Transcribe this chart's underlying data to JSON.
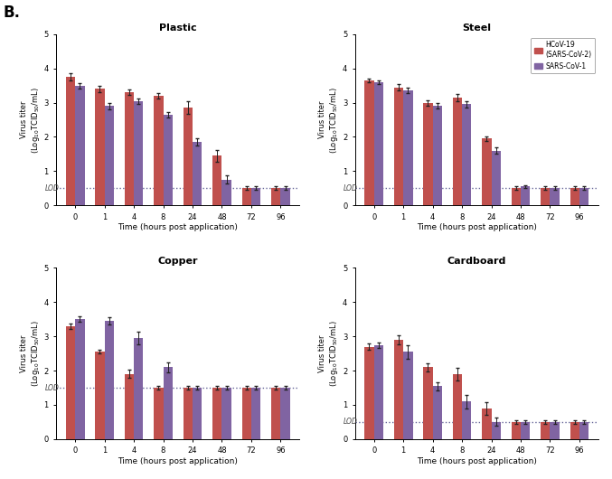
{
  "panels": [
    {
      "title": "Plastic",
      "timepoints": [
        0,
        1,
        4,
        8,
        24,
        48,
        72,
        96
      ],
      "sars2_means": [
        3.75,
        3.4,
        3.3,
        3.2,
        2.85,
        1.45,
        0.5,
        0.5
      ],
      "sars1_means": [
        3.5,
        2.9,
        3.05,
        2.65,
        1.85,
        0.75,
        0.5,
        0.5
      ],
      "sars2_err": [
        0.1,
        0.1,
        0.08,
        0.08,
        0.18,
        0.18,
        0.05,
        0.05
      ],
      "sars1_err": [
        0.08,
        0.1,
        0.08,
        0.08,
        0.1,
        0.12,
        0.05,
        0.05
      ]
    },
    {
      "title": "Steel",
      "timepoints": [
        0,
        1,
        4,
        8,
        24,
        48,
        72,
        96
      ],
      "sars2_means": [
        3.65,
        3.45,
        3.0,
        3.15,
        1.95,
        0.5,
        0.5,
        0.5
      ],
      "sars1_means": [
        3.6,
        3.35,
        2.9,
        2.95,
        1.6,
        0.55,
        0.5,
        0.5
      ],
      "sars2_err": [
        0.05,
        0.1,
        0.08,
        0.1,
        0.07,
        0.05,
        0.05,
        0.05
      ],
      "sars1_err": [
        0.05,
        0.08,
        0.08,
        0.08,
        0.1,
        0.05,
        0.05,
        0.05
      ]
    },
    {
      "title": "Copper",
      "timepoints": [
        0,
        1,
        4,
        8,
        24,
        48,
        72,
        96
      ],
      "sars2_means": [
        3.3,
        2.55,
        1.9,
        1.5,
        1.5,
        1.5,
        1.5,
        1.5
      ],
      "sars1_means": [
        3.5,
        3.45,
        2.95,
        2.1,
        1.5,
        1.5,
        1.5,
        1.5
      ],
      "sars2_err": [
        0.08,
        0.05,
        0.12,
        0.05,
        0.05,
        0.05,
        0.05,
        0.05
      ],
      "sars1_err": [
        0.08,
        0.1,
        0.18,
        0.15,
        0.05,
        0.05,
        0.05,
        0.05
      ]
    },
    {
      "title": "Cardboard",
      "timepoints": [
        0,
        1,
        4,
        8,
        24,
        48,
        72,
        96
      ],
      "sars2_means": [
        2.7,
        2.9,
        2.1,
        1.9,
        0.9,
        0.5,
        0.5,
        0.5
      ],
      "sars1_means": [
        2.75,
        2.55,
        1.55,
        1.1,
        0.5,
        0.5,
        0.5,
        0.5
      ],
      "sars2_err": [
        0.1,
        0.12,
        0.12,
        0.18,
        0.18,
        0.05,
        0.05,
        0.05
      ],
      "sars1_err": [
        0.08,
        0.2,
        0.12,
        0.2,
        0.12,
        0.05,
        0.05,
        0.05
      ]
    }
  ],
  "color_sars2": "#C0504D",
  "color_sars1": "#8064A2",
  "lod_plastic": 0.5,
  "lod_steel": 0.5,
  "lod_copper": 1.5,
  "lod_cardboard": 0.5,
  "lod_values": [
    0.5,
    0.5,
    1.5,
    0.5
  ],
  "ylim": [
    0,
    5
  ],
  "yticks": [
    0,
    1,
    2,
    3,
    4,
    5
  ],
  "ylabel": "Virus titer\n(Log$_{10}$TCID$_{50}$/mL)",
  "xlabel": "Time (hours post application)",
  "legend_labels": [
    "HCoV-19\n(SARS-CoV-2)",
    "SARS-CoV-1"
  ],
  "panel_label": "B.",
  "bar_width": 0.32
}
